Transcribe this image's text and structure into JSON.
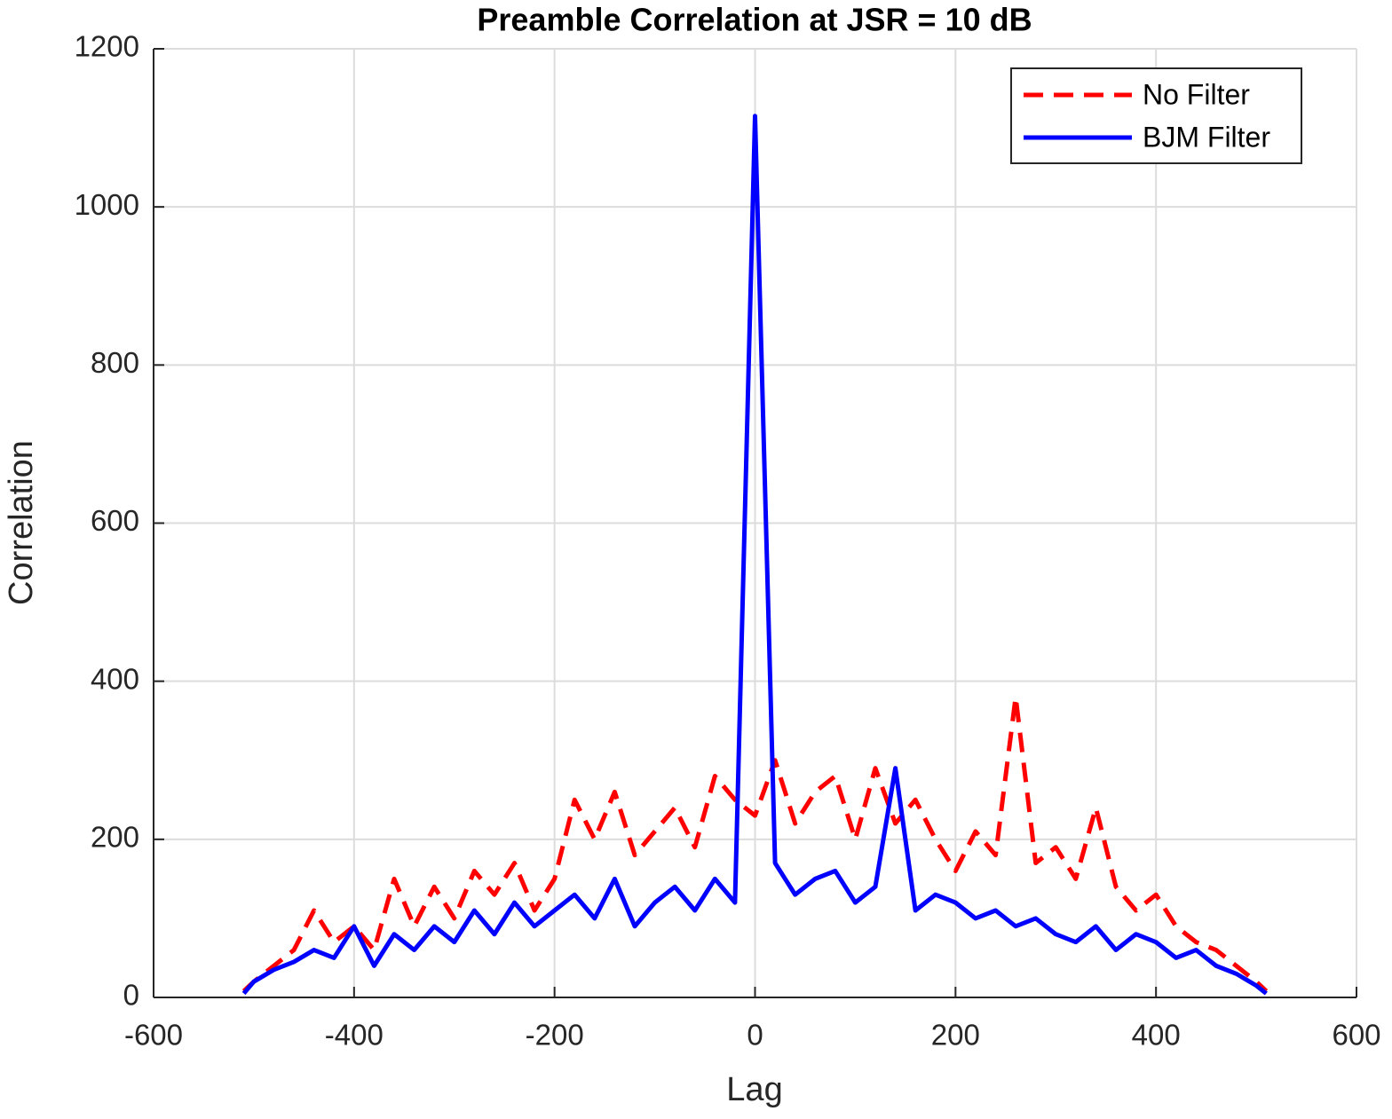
{
  "chart_data": {
    "type": "line",
    "title": "Preamble Correlation at JSR = 10 dB",
    "x_label": "Lag",
    "y_label": "Correlation",
    "x": [
      -510,
      -500,
      -480,
      -460,
      -440,
      -420,
      -400,
      -380,
      -360,
      -340,
      -320,
      -300,
      -280,
      -260,
      -240,
      -220,
      -200,
      -180,
      -160,
      -140,
      -120,
      -100,
      -80,
      -60,
      -40,
      -20,
      0,
      20,
      40,
      60,
      80,
      100,
      120,
      140,
      160,
      180,
      200,
      220,
      240,
      260,
      280,
      300,
      320,
      340,
      360,
      380,
      400,
      420,
      440,
      460,
      480,
      500,
      510
    ],
    "series": [
      {
        "name": "No Filter",
        "color": "#ff0000",
        "dashed": true,
        "values": [
          8,
          20,
          40,
          60,
          110,
          70,
          90,
          60,
          150,
          90,
          140,
          100,
          160,
          130,
          170,
          110,
          150,
          250,
          200,
          260,
          180,
          210,
          240,
          190,
          280,
          250,
          230,
          300,
          220,
          260,
          280,
          200,
          290,
          220,
          250,
          200,
          160,
          210,
          180,
          380,
          170,
          190,
          150,
          240,
          140,
          110,
          130,
          90,
          70,
          60,
          40,
          20,
          8
        ]
      },
      {
        "name": "BJM Filter",
        "color": "#0000ff",
        "dashed": false,
        "values": [
          5,
          20,
          35,
          45,
          60,
          50,
          90,
          40,
          80,
          60,
          90,
          70,
          110,
          80,
          120,
          90,
          110,
          130,
          100,
          150,
          90,
          120,
          140,
          110,
          150,
          120,
          1115,
          170,
          130,
          150,
          160,
          120,
          140,
          290,
          110,
          130,
          120,
          100,
          110,
          90,
          100,
          80,
          70,
          90,
          60,
          80,
          70,
          50,
          60,
          40,
          30,
          15,
          5
        ]
      }
    ],
    "xlim": [
      -600,
      600
    ],
    "xticks": [
      -600,
      -400,
      -200,
      0,
      200,
      400,
      600
    ],
    "ylim": [
      0,
      1200
    ],
    "yticks": [
      0,
      200,
      400,
      600,
      800,
      1000,
      1200
    ],
    "grid": true,
    "legend": "upper right"
  }
}
